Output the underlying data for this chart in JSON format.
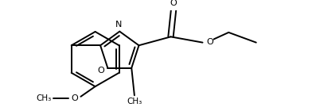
{
  "background_color": "#ffffff",
  "line_color": "#000000",
  "line_width": 1.4,
  "figsize": [
    3.92,
    1.4
  ],
  "dpi": 100,
  "font_size_atom": 8.0,
  "font_size_label": 7.5,
  "xlim": [
    0,
    392
  ],
  "ylim": [
    0,
    140
  ]
}
